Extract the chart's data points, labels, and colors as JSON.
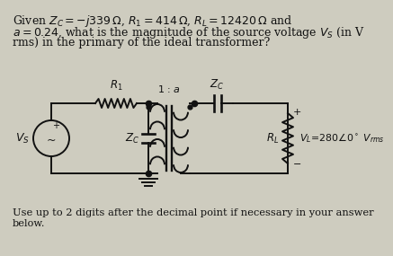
{
  "bg_color": "#ceccbf",
  "title_lines": [
    "Given $Z_C = -j339\\,\\Omega$, $R_1 = 414\\,\\Omega$, $R_L = 12420\\,\\Omega$ and",
    "$a = 0.24$, what is the magnitude of the source voltage $V_S$ (in V",
    "rms) in the primary of the ideal transformer?"
  ],
  "footer_lines": [
    "Use up to 2 digits after the decimal point if necessary in your answer",
    "below."
  ],
  "text_color": "#111111",
  "font_size_title": 9.0,
  "font_size_footer": 8.2,
  "circuit": {
    "vs_label": "$V_S$",
    "r1_label": "$R_1$",
    "zc_shunt_label": "$Z_C$",
    "transformer_label": "1 : $a$",
    "zc_series_label": "$Z_C$",
    "rl_label": "$R_L$",
    "vl_label": "$V_L\\!=\\!280\\angle0^\\circ$ $V_{rms}$"
  }
}
